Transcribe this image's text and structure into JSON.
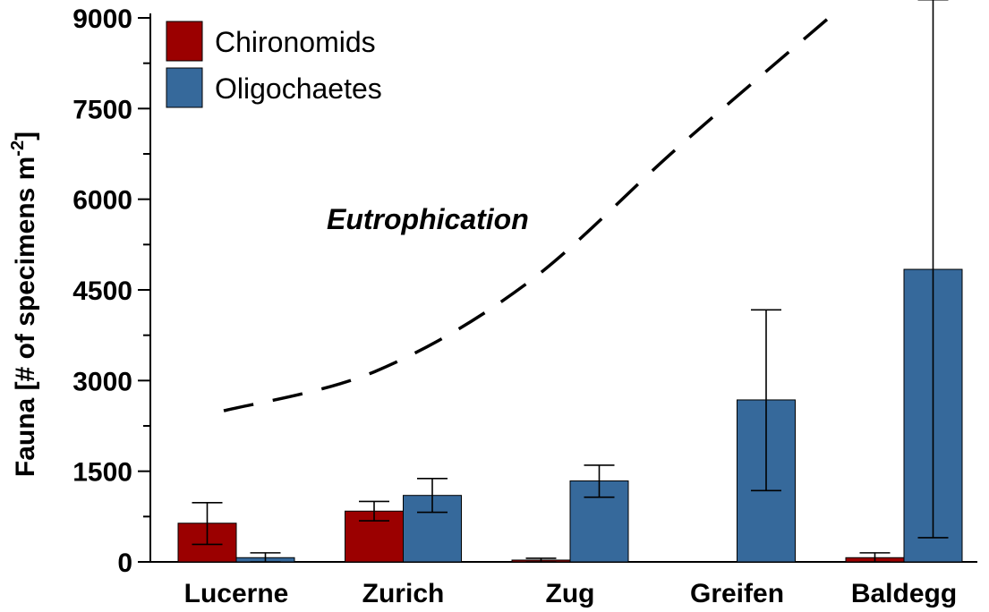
{
  "chart_data": {
    "type": "bar",
    "categories": [
      "Lucerne",
      "Zurich",
      "Zug",
      "Greifen",
      "Baldegg"
    ],
    "series": [
      {
        "name": "Chironomids",
        "color": "#9b0000",
        "values": [
          640,
          840,
          30,
          0,
          70
        ],
        "err_low": [
          290,
          680,
          0,
          0,
          0
        ],
        "err_high": [
          980,
          1000,
          60,
          null,
          150
        ]
      },
      {
        "name": "Oligochaetes",
        "color": "#36699b",
        "values": [
          70,
          1100,
          1340,
          2680,
          4840
        ],
        "err_low": [
          0,
          820,
          1070,
          1180,
          400
        ],
        "err_high": [
          150,
          1380,
          1600,
          4170,
          9300
        ]
      }
    ],
    "ylabel_main": "Fauna [# of specimens m",
    "ylabel_sup": "-2",
    "ylabel_end": "]",
    "ylim": [
      0,
      9000
    ],
    "yticks": [
      0,
      1500,
      3000,
      4500,
      6000,
      7500,
      9000
    ],
    "yminor_step": 750,
    "legend_position": "top-left",
    "annotation": "Eutrophication",
    "trend_curve": {
      "style": "dashed",
      "x_category": [
        0.0,
        1.0,
        2.0,
        3.0,
        4.0
      ],
      "y": [
        2500,
        3150,
        4600,
        6850,
        9000
      ]
    }
  }
}
